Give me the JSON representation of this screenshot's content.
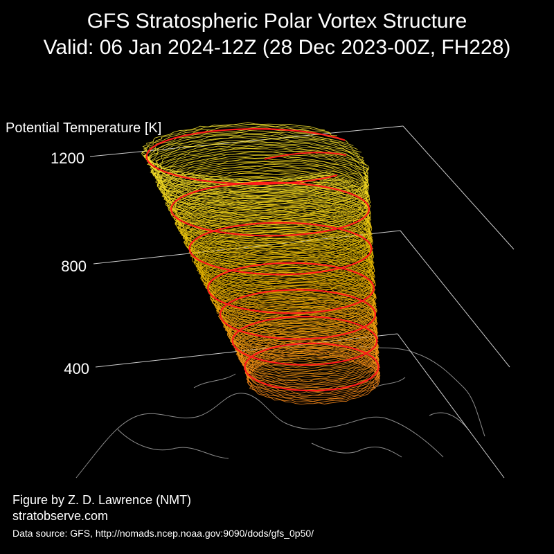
{
  "chart_data": {
    "type": "area",
    "title": "GFS Stratospheric Polar Vortex Structure",
    "subtitle": "Valid: 06 Jan 2024-12Z  (28 Dec 2023-00Z, FH228)",
    "zlabel": "Potential Temperature [K]",
    "z_ticks": [
      "1200",
      "800",
      "400"
    ],
    "zlim": [
      350,
      1250
    ],
    "highlight_levels": [
      400,
      500,
      600,
      700,
      850,
      1000,
      1200
    ],
    "colors": {
      "low": "#ff8c1a",
      "mid": "#e6b800",
      "high": "#ffee33",
      "contour": "#ff1a1a",
      "axis": "#cccccc",
      "coast": "#8c8c8c"
    }
  },
  "credits": {
    "author": "Figure by Z. D. Lawrence (NMT)",
    "site": "stratobserve.com",
    "source": "Data source: GFS, http://nomads.ncep.noaa.gov:9090/dods/gfs_0p50/"
  }
}
